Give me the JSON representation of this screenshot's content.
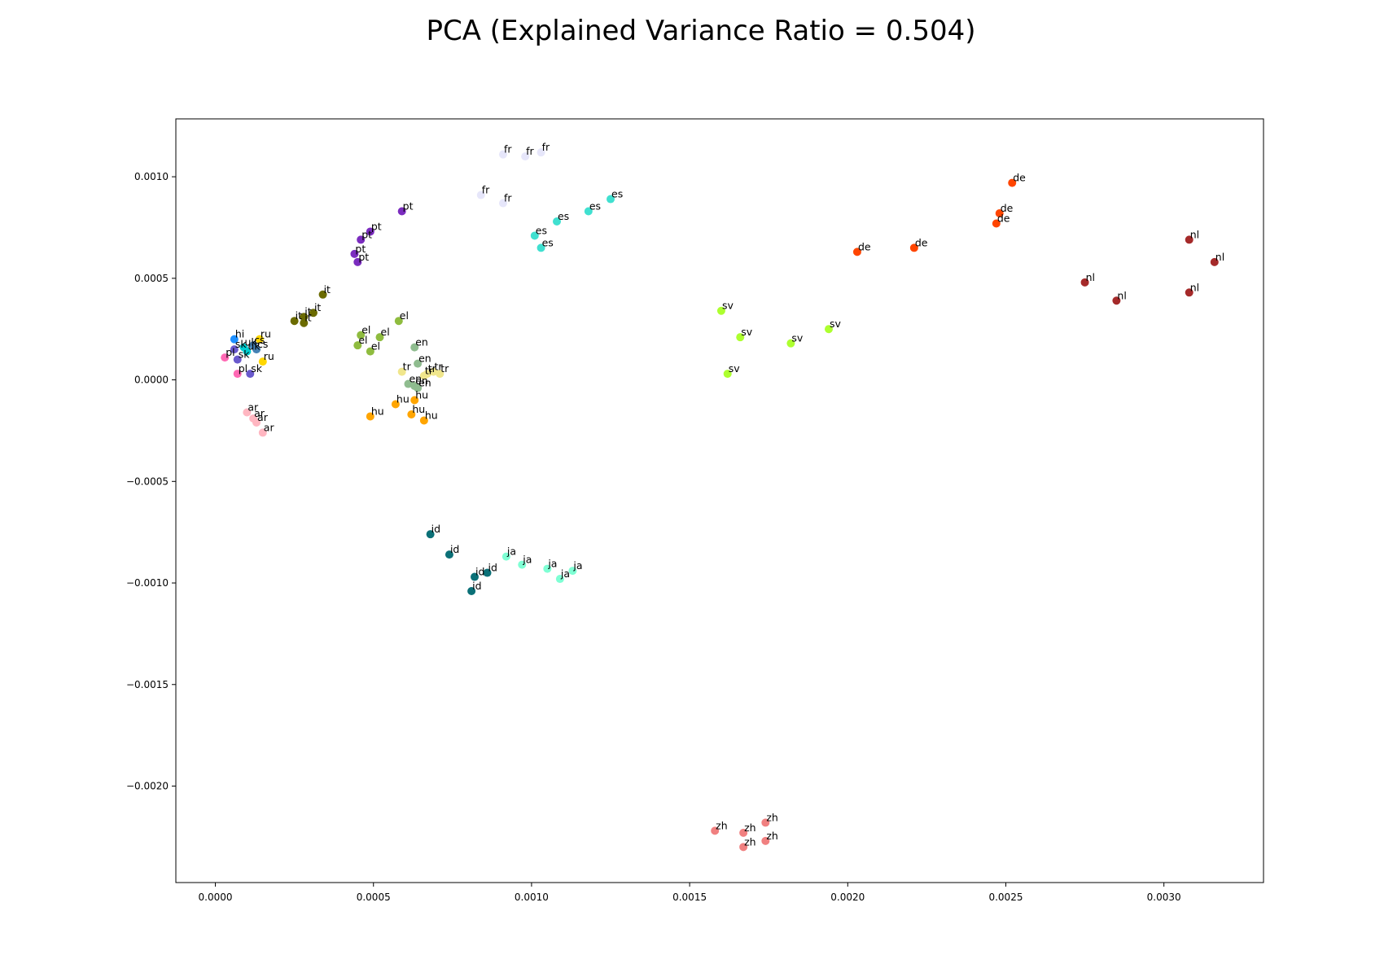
{
  "chart_data": {
    "type": "scatter",
    "title": "PCA (Explained Variance Ratio = 0.504)",
    "xlabel": "",
    "ylabel": "",
    "xlim": [
      -0.000125,
      0.003315
    ],
    "ylim": [
      -0.002475,
      0.001285
    ],
    "xticks": [
      0.0,
      0.0005,
      0.001,
      0.0015,
      0.002,
      0.0025,
      0.003
    ],
    "xtick_labels": [
      "0.0000",
      "0.0005",
      "0.0010",
      "0.0015",
      "0.0020",
      "0.0025",
      "0.0030"
    ],
    "yticks": [
      -0.002,
      -0.0015,
      -0.001,
      -0.0005,
      0.0,
      0.0005,
      0.001
    ],
    "ytick_labels": [
      "−0.0020",
      "−0.0015",
      "−0.0010",
      "−0.0005",
      "0.0000",
      "0.0005",
      "0.0010"
    ],
    "grid": false,
    "series": [
      {
        "name": "fr",
        "color": "#e6e6fa",
        "points": [
          [
            0.00091,
            0.00111
          ],
          [
            0.00098,
            0.0011
          ],
          [
            0.00103,
            0.00112
          ],
          [
            0.00084,
            0.00091
          ],
          [
            0.00091,
            0.00087
          ]
        ]
      },
      {
        "name": "es",
        "color": "#40e0d0",
        "points": [
          [
            0.00125,
            0.00089
          ],
          [
            0.00118,
            0.00083
          ],
          [
            0.00108,
            0.00078
          ],
          [
            0.00101,
            0.00071
          ],
          [
            0.00103,
            0.00065
          ]
        ]
      },
      {
        "name": "pt",
        "color": "#7b2cbf",
        "points": [
          [
            0.00059,
            0.00083
          ],
          [
            0.00049,
            0.00073
          ],
          [
            0.00046,
            0.00069
          ],
          [
            0.00044,
            0.00062
          ],
          [
            0.00045,
            0.00058
          ]
        ]
      },
      {
        "name": "it",
        "color": "#6b6b00",
        "points": [
          [
            0.00034,
            0.00042
          ],
          [
            0.00031,
            0.00033
          ],
          [
            0.00028,
            0.00031
          ],
          [
            0.00025,
            0.00029
          ],
          [
            0.00028,
            0.00028
          ]
        ]
      },
      {
        "name": "el",
        "color": "#8fbc3f",
        "points": [
          [
            0.00058,
            0.00029
          ],
          [
            0.00046,
            0.00022
          ],
          [
            0.00052,
            0.00021
          ],
          [
            0.00045,
            0.00017
          ],
          [
            0.00049,
            0.00014
          ]
        ]
      },
      {
        "name": "en",
        "color": "#8fbc8f",
        "points": [
          [
            0.00063,
            0.00016
          ],
          [
            0.00064,
            8e-05
          ],
          [
            0.00061,
            -2e-05
          ],
          [
            0.00063,
            -3e-05
          ],
          [
            0.00064,
            -4e-05
          ]
        ]
      },
      {
        "name": "tr",
        "color": "#f0e68c",
        "points": [
          [
            0.00059,
            4e-05
          ],
          [
            0.00069,
            4e-05
          ],
          [
            0.00067,
            3e-05
          ],
          [
            0.00071,
            3e-05
          ],
          [
            0.00066,
            2e-05
          ]
        ]
      },
      {
        "name": "hu",
        "color": "#ffa500",
        "points": [
          [
            0.00063,
            -0.0001
          ],
          [
            0.00057,
            -0.00012
          ],
          [
            0.00049,
            -0.00018
          ],
          [
            0.00062,
            -0.00017
          ],
          [
            0.00066,
            -0.0002
          ]
        ]
      },
      {
        "name": "ar",
        "color": "#ffb6c1",
        "points": [
          [
            0.0001,
            -0.00016
          ],
          [
            0.00012,
            -0.00019
          ],
          [
            0.00013,
            -0.00021
          ],
          [
            0.00015,
            -0.00026
          ]
        ]
      },
      {
        "name": "ru",
        "color": "#ffd700",
        "points": [
          [
            0.00014,
            0.0002
          ],
          [
            0.00015,
            9e-05
          ]
        ]
      },
      {
        "name": "hi",
        "color": "#1e90ff",
        "points": [
          [
            6e-05,
            0.0002
          ]
        ]
      },
      {
        "name": "cs",
        "color": "#4682b4",
        "points": [
          [
            0.00012,
            0.00017
          ],
          [
            0.00013,
            0.00015
          ]
        ]
      },
      {
        "name": "pl",
        "color": "#ff69b4",
        "points": [
          [
            3e-05,
            0.00011
          ],
          [
            7e-05,
            3e-05
          ]
        ]
      },
      {
        "name": "sk",
        "color": "#6a5acd",
        "points": [
          [
            6e-05,
            0.00015
          ],
          [
            7e-05,
            0.0001
          ],
          [
            0.00011,
            3e-05
          ]
        ]
      },
      {
        "name": "uk",
        "color": "#00ced1",
        "points": [
          [
            9e-05,
            0.00016
          ],
          [
            0.0001,
            0.00014
          ]
        ]
      },
      {
        "name": "id",
        "color": "#0b7077",
        "points": [
          [
            0.00068,
            -0.00076
          ],
          [
            0.00074,
            -0.00086
          ],
          [
            0.00086,
            -0.00095
          ],
          [
            0.00082,
            -0.00097
          ],
          [
            0.00081,
            -0.00104
          ]
        ]
      },
      {
        "name": "ja",
        "color": "#7fffd4",
        "points": [
          [
            0.00092,
            -0.00087
          ],
          [
            0.00097,
            -0.00091
          ],
          [
            0.00105,
            -0.00093
          ],
          [
            0.00113,
            -0.00094
          ],
          [
            0.00109,
            -0.00098
          ]
        ]
      },
      {
        "name": "sv",
        "color": "#adff2f",
        "points": [
          [
            0.0016,
            0.00034
          ],
          [
            0.00166,
            0.00021
          ],
          [
            0.00182,
            0.00018
          ],
          [
            0.00194,
            0.00025
          ],
          [
            0.00162,
            3e-05
          ]
        ]
      },
      {
        "name": "de",
        "color": "#ff4500",
        "points": [
          [
            0.00252,
            0.00097
          ],
          [
            0.00248,
            0.00082
          ],
          [
            0.00247,
            0.00077
          ],
          [
            0.00203,
            0.00063
          ],
          [
            0.00221,
            0.00065
          ]
        ]
      },
      {
        "name": "nl",
        "color": "#a52a2a",
        "points": [
          [
            0.00308,
            0.00069
          ],
          [
            0.00316,
            0.00058
          ],
          [
            0.00275,
            0.00048
          ],
          [
            0.00285,
            0.00039
          ],
          [
            0.00308,
            0.00043
          ]
        ]
      },
      {
        "name": "zh",
        "color": "#f08080",
        "points": [
          [
            0.00158,
            -0.00222
          ],
          [
            0.00167,
            -0.00223
          ],
          [
            0.00174,
            -0.00218
          ],
          [
            0.00174,
            -0.00227
          ],
          [
            0.00167,
            -0.0023
          ]
        ]
      }
    ]
  }
}
